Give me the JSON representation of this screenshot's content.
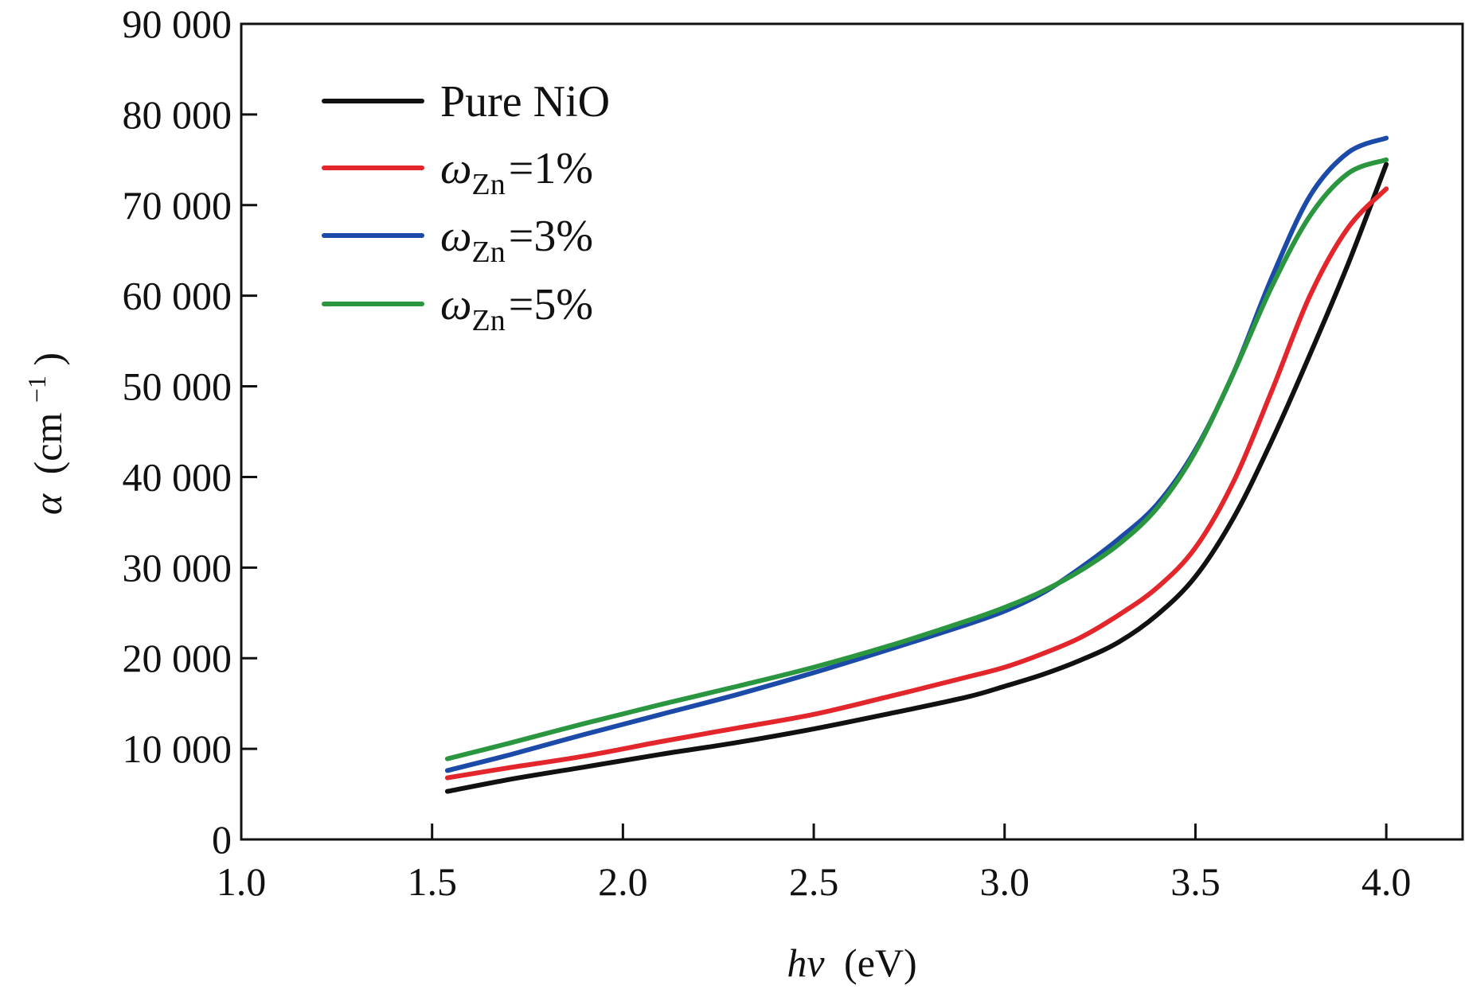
{
  "chart_data": {
    "type": "line",
    "title": "",
    "xlabel": {
      "symbol": "hv",
      "unit": "(eV)"
    },
    "ylabel": {
      "symbol": "α",
      "base": "(cm",
      "superscript": "−1",
      "close": ")"
    },
    "xlim": [
      1.0,
      4.2
    ],
    "ylim": [
      0,
      90000
    ],
    "xticks": [
      1.0,
      1.5,
      2.0,
      2.5,
      3.0,
      3.5,
      4.0
    ],
    "xtick_labels": [
      "1.0",
      "1.5",
      "2.0",
      "2.5",
      "3.0",
      "3.5",
      "4.0"
    ],
    "yticks": [
      0,
      10000,
      20000,
      30000,
      40000,
      50000,
      60000,
      70000,
      80000,
      90000
    ],
    "ytick_labels": [
      "0",
      "10 000",
      "20 000",
      "30 000",
      "40 000",
      "50 000",
      "60 000",
      "70 000",
      "80 000",
      "90 000"
    ],
    "grid": false,
    "legend_position": "top-left",
    "series": [
      {
        "name": "Pure NiO",
        "legend": {
          "plain": "Pure NiO"
        },
        "color": "#111111",
        "points": [
          [
            1.54,
            5300
          ],
          [
            1.7,
            6600
          ],
          [
            1.9,
            8000
          ],
          [
            2.1,
            9400
          ],
          [
            2.3,
            10700
          ],
          [
            2.5,
            12200
          ],
          [
            2.7,
            13900
          ],
          [
            2.9,
            15700
          ],
          [
            3.0,
            16900
          ],
          [
            3.1,
            18200
          ],
          [
            3.2,
            19800
          ],
          [
            3.3,
            21800
          ],
          [
            3.4,
            24800
          ],
          [
            3.5,
            29000
          ],
          [
            3.6,
            35500
          ],
          [
            3.7,
            44000
          ],
          [
            3.8,
            53500
          ],
          [
            3.9,
            63500
          ],
          [
            4.0,
            74500
          ]
        ]
      },
      {
        "name": "ωZn=1%",
        "legend": {
          "symbol": "ω",
          "sub": "Zn",
          "value": "=1%"
        },
        "color": "#e3262b",
        "points": [
          [
            1.54,
            6800
          ],
          [
            1.7,
            7900
          ],
          [
            1.9,
            9200
          ],
          [
            2.1,
            10800
          ],
          [
            2.3,
            12300
          ],
          [
            2.5,
            13800
          ],
          [
            2.7,
            15800
          ],
          [
            2.9,
            17900
          ],
          [
            3.0,
            19000
          ],
          [
            3.1,
            20500
          ],
          [
            3.2,
            22300
          ],
          [
            3.3,
            24800
          ],
          [
            3.4,
            27800
          ],
          [
            3.5,
            32200
          ],
          [
            3.6,
            39500
          ],
          [
            3.7,
            49500
          ],
          [
            3.8,
            60000
          ],
          [
            3.9,
            67500
          ],
          [
            4.0,
            71800
          ]
        ]
      },
      {
        "name": "ωZn=3%",
        "legend": {
          "symbol": "ω",
          "sub": "Zn",
          "value": "=3%"
        },
        "color": "#1c4aa8",
        "points": [
          [
            1.54,
            7600
          ],
          [
            1.7,
            9300
          ],
          [
            1.9,
            11600
          ],
          [
            2.1,
            13800
          ],
          [
            2.3,
            16000
          ],
          [
            2.5,
            18400
          ],
          [
            2.7,
            21000
          ],
          [
            2.9,
            23700
          ],
          [
            3.0,
            25200
          ],
          [
            3.1,
            27200
          ],
          [
            3.2,
            30000
          ],
          [
            3.3,
            33200
          ],
          [
            3.4,
            37000
          ],
          [
            3.5,
            43000
          ],
          [
            3.6,
            51500
          ],
          [
            3.7,
            62000
          ],
          [
            3.8,
            71000
          ],
          [
            3.9,
            75800
          ],
          [
            4.0,
            77400
          ]
        ]
      },
      {
        "name": "ωZn=5%",
        "legend": {
          "symbol": "ω",
          "sub": "Zn",
          "value": "=5%"
        },
        "color": "#2b9640",
        "points": [
          [
            1.54,
            8900
          ],
          [
            1.7,
            10600
          ],
          [
            1.9,
            12800
          ],
          [
            2.1,
            14900
          ],
          [
            2.3,
            16900
          ],
          [
            2.5,
            19000
          ],
          [
            2.7,
            21400
          ],
          [
            2.9,
            24100
          ],
          [
            3.0,
            25600
          ],
          [
            3.1,
            27400
          ],
          [
            3.2,
            29700
          ],
          [
            3.3,
            32600
          ],
          [
            3.4,
            36600
          ],
          [
            3.5,
            42800
          ],
          [
            3.6,
            51500
          ],
          [
            3.7,
            61000
          ],
          [
            3.8,
            68800
          ],
          [
            3.9,
            73500
          ],
          [
            4.0,
            75000
          ]
        ]
      }
    ]
  }
}
